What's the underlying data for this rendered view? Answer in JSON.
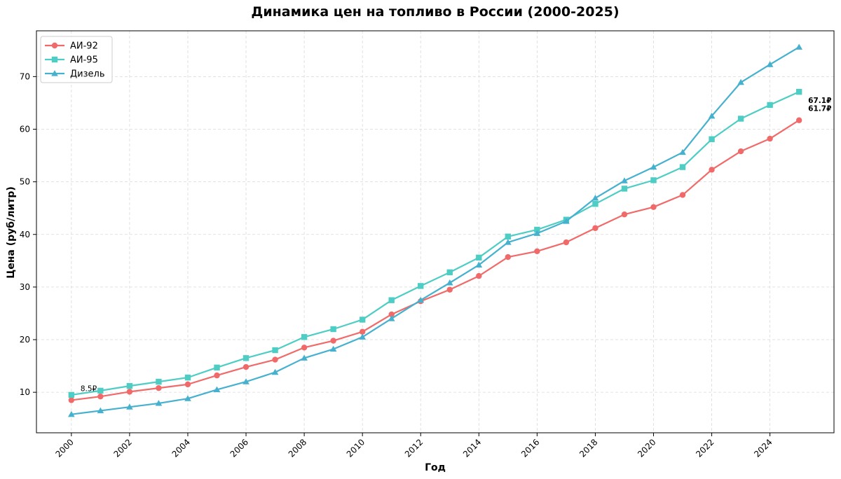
{
  "chart_data": {
    "type": "line",
    "title": "Динамика цен на топливо в России (2000-2025)",
    "xlabel": "Год",
    "ylabel": "Цена (руб/литр)",
    "x": [
      2000,
      2001,
      2002,
      2003,
      2004,
      2005,
      2006,
      2007,
      2008,
      2009,
      2010,
      2011,
      2012,
      2013,
      2014,
      2015,
      2016,
      2017,
      2018,
      2019,
      2020,
      2021,
      2022,
      2023,
      2024,
      2025
    ],
    "xticks": [
      2000,
      2002,
      2004,
      2006,
      2008,
      2010,
      2012,
      2014,
      2016,
      2018,
      2020,
      2022,
      2024
    ],
    "xlim": [
      1998.8,
      2026.2
    ],
    "yticks": [
      10,
      20,
      30,
      40,
      50,
      60,
      70
    ],
    "ylim": [
      2.3,
      78.7
    ],
    "grid": true,
    "legend_position": "top-left",
    "series": [
      {
        "name": "АИ-92",
        "color": "#f16a6a",
        "marker": "circle",
        "values": [
          8.5,
          9.2,
          10.1,
          10.8,
          11.5,
          13.2,
          14.8,
          16.2,
          18.5,
          19.8,
          21.5,
          24.8,
          27.3,
          29.5,
          32.1,
          35.7,
          36.8,
          38.5,
          41.2,
          43.8,
          45.2,
          47.5,
          52.3,
          55.8,
          58.2,
          61.7
        ]
      },
      {
        "name": "АИ-95",
        "color": "#4ecdc4",
        "marker": "square",
        "values": [
          9.5,
          10.3,
          11.2,
          12.0,
          12.8,
          14.7,
          16.5,
          18.0,
          20.5,
          22.0,
          23.8,
          27.5,
          30.2,
          32.8,
          35.6,
          39.6,
          40.9,
          42.8,
          45.8,
          48.7,
          50.3,
          52.8,
          58.1,
          62.0,
          64.6,
          67.1
        ]
      },
      {
        "name": "Дизель",
        "color": "#45b1cf",
        "marker": "triangle",
        "values": [
          5.8,
          6.5,
          7.2,
          7.9,
          8.8,
          10.5,
          12.0,
          13.8,
          16.5,
          18.2,
          20.5,
          24.0,
          27.5,
          30.8,
          34.2,
          38.5,
          40.2,
          42.5,
          46.9,
          50.2,
          52.8,
          55.6,
          62.5,
          68.9,
          72.3,
          75.6
        ]
      }
    ],
    "annotations": [
      {
        "text": "8.5₽",
        "x": 2000,
        "y": 8.5,
        "bold": false,
        "anchor": "start",
        "dx": 13,
        "dy": -13
      },
      {
        "text": "67.1₽",
        "x": 2025,
        "y": 67.1,
        "bold": true,
        "anchor": "start",
        "dx": 13,
        "dy": 16
      },
      {
        "text": "61.7₽",
        "x": 2025,
        "y": 61.7,
        "bold": true,
        "anchor": "start",
        "dx": 13,
        "dy": -13
      }
    ]
  }
}
